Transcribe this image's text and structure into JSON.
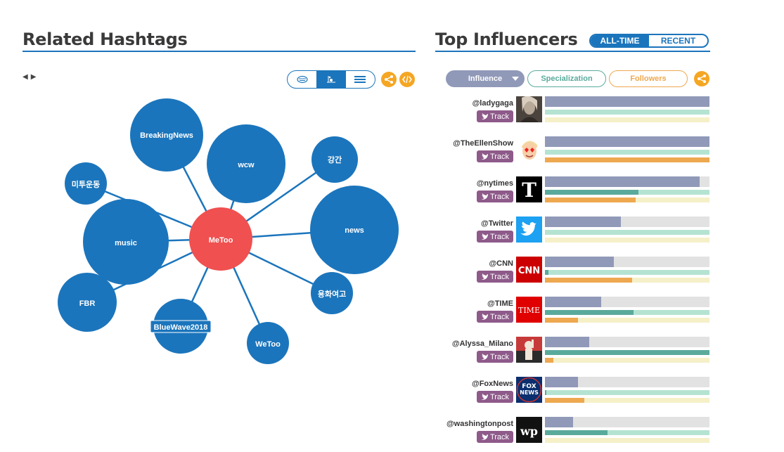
{
  "left_panel": {
    "title": "Related Hashtags"
  },
  "right_panel": {
    "title": "Top Influencers",
    "toggle": [
      "ALL-TIME",
      "RECENT"
    ],
    "sort": {
      "influence": "Influence",
      "specialization": "Specialization",
      "followers": "Followers"
    }
  },
  "nav": {
    "prev": "◀",
    "next": "▶"
  },
  "colors": {
    "accent": "#1b75bc",
    "center": "#f05050",
    "influence": "#9099b8",
    "specialization": "#5aaa9c",
    "followers": "#eea850",
    "track": "#8e5a8a"
  },
  "graph": {
    "center": "MeToo",
    "nodes": [
      "BreakingNews",
      "wcw",
      "강간",
      "미투운동",
      "music",
      "news",
      "FBR",
      "BlueWave2018",
      "WeToo",
      "용화여고"
    ]
  },
  "track_label": "Track",
  "influencers": [
    {
      "handle": "@ladygaga",
      "avatar": "ladygaga-avatar",
      "influence": 1.0,
      "specialization": 0.0,
      "followers": 0.0
    },
    {
      "handle": "@TheEllenShow",
      "avatar": "ellen-avatar",
      "influence": 1.0,
      "specialization": 0.0,
      "followers": 1.0
    },
    {
      "handle": "@nytimes",
      "avatar": "nytimes-logo",
      "influence": 0.94,
      "specialization": 0.57,
      "followers": 0.55
    },
    {
      "handle": "@Twitter",
      "avatar": "twitter-logo",
      "influence": 0.46,
      "specialization": 0.0,
      "followers": 0.0
    },
    {
      "handle": "@CNN",
      "avatar": "cnn-logo",
      "influence": 0.42,
      "specialization": 0.02,
      "followers": 0.53
    },
    {
      "handle": "@TIME",
      "avatar": "time-logo",
      "influence": 0.34,
      "specialization": 0.54,
      "followers": 0.2
    },
    {
      "handle": "@Alyssa_Milano",
      "avatar": "alyssa-avatar",
      "influence": 0.27,
      "specialization": 1.0,
      "followers": 0.05
    },
    {
      "handle": "@FoxNews",
      "avatar": "foxnews-logo",
      "influence": 0.2,
      "specialization": 0.01,
      "followers": 0.24
    },
    {
      "handle": "@washingtonpost",
      "avatar": "washingtonpost-logo",
      "influence": 0.17,
      "specialization": 0.38,
      "followers": 0.0
    }
  ]
}
